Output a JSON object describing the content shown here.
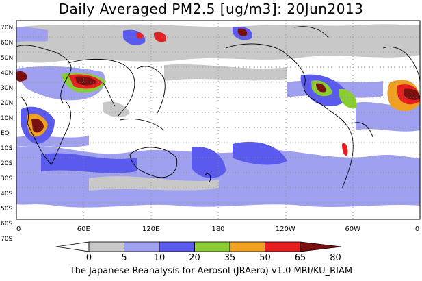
{
  "title": "Daily Averaged PM2.5 [ug/m3]: 20Jun2013",
  "footer": "The Japanese Reanalysis for Aerosol (JRAero) v1.0 MRI/KU_RIAM",
  "lat_labels": [
    "70N",
    "60N",
    "50N",
    "40N",
    "30N",
    "20N",
    "10N",
    "EQ",
    "10S",
    "20S",
    "30S",
    "40S",
    "50S",
    "60S",
    "70S"
  ],
  "lon_labels": [
    "0",
    "60E",
    "120E",
    "180",
    "120W",
    "60W",
    "0"
  ],
  "colorbar": {
    "ticks": [
      "0",
      "5",
      "10",
      "20",
      "35",
      "50",
      "65",
      "80"
    ],
    "colors": [
      "#ffffff",
      "#c8c8c8",
      "#a0a0f0",
      "#5a5aee",
      "#8acc33",
      "#f0a020",
      "#e51f1f",
      "#7a1010"
    ]
  }
}
